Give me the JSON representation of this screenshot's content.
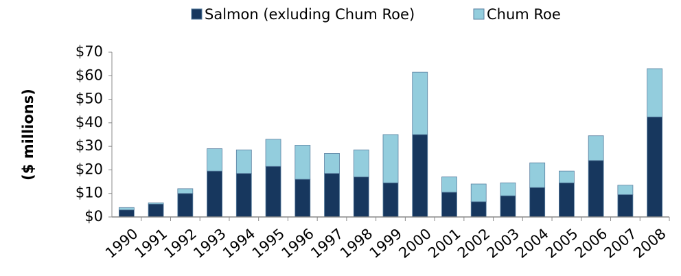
{
  "chart_data": {
    "type": "stacked_bar",
    "categories": [
      "1990",
      "1991",
      "1992",
      "1993",
      "1994",
      "1995",
      "1996",
      "1997",
      "1998",
      "1999",
      "2000",
      "2001",
      "2002",
      "2003",
      "2004",
      "2005",
      "2006",
      "2007",
      "2008"
    ],
    "series": [
      {
        "name": "Salmon (exluding Chum Roe)",
        "color": "#17375e",
        "values": [
          3,
          5.5,
          10,
          19.5,
          18.5,
          21.5,
          16,
          18.5,
          17,
          14.5,
          35,
          10.5,
          6.5,
          9,
          12.5,
          14.5,
          24,
          9.5,
          42.5
        ]
      },
      {
        "name": "Chum Roe",
        "color": "#93cddd",
        "values": [
          1,
          0.5,
          2,
          9.5,
          10,
          11.5,
          14.5,
          8.5,
          11.5,
          20.5,
          26.5,
          6.5,
          7.5,
          5.5,
          10.5,
          5,
          10.5,
          4,
          20.5
        ]
      }
    ],
    "y_label": "($ millions)",
    "ylim": [
      0,
      70
    ],
    "yticks": [
      {
        "value": 0,
        "label": "$0"
      },
      {
        "value": 10,
        "label": "$10"
      },
      {
        "value": 20,
        "label": "$20"
      },
      {
        "value": 30,
        "label": "$30"
      },
      {
        "value": 40,
        "label": "$40"
      },
      {
        "value": 50,
        "label": "$50"
      },
      {
        "value": 60,
        "label": "$60"
      },
      {
        "value": 70,
        "label": "$70"
      }
    ],
    "legend": "top"
  }
}
